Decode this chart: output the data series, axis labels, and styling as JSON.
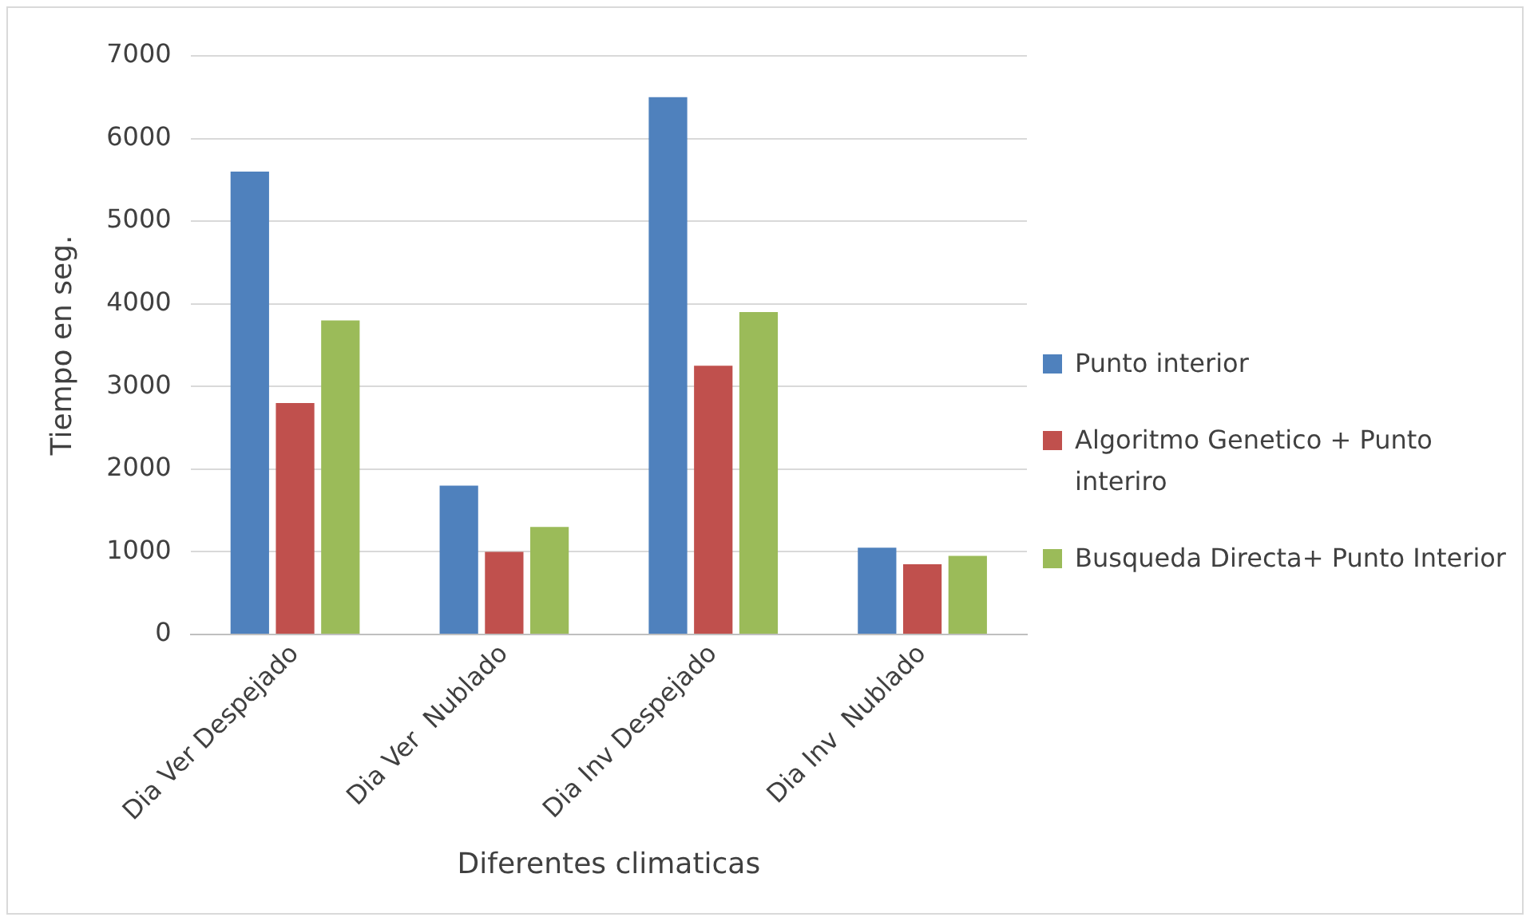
{
  "chart_data": {
    "type": "bar",
    "xlabel": "Diferentes climaticas",
    "ylabel": "Tiempo en seg.",
    "categories": [
      "Dia Ver Despejado",
      "Dia Ver  Nublado",
      "Dia Inv Despejado",
      "Dia Inv  Nublado"
    ],
    "series": [
      {
        "name": "Punto interior",
        "color": "#4f81bd",
        "values": [
          5600,
          1800,
          6500,
          1050
        ]
      },
      {
        "name": "Algoritmo Genetico + Punto interiro",
        "color": "#c0504d",
        "values": [
          2800,
          1000,
          3250,
          850
        ]
      },
      {
        "name": "Busqueda Directa+ Punto Interior",
        "color": "#9bbb59",
        "values": [
          3800,
          1300,
          3900,
          950
        ]
      }
    ],
    "ylim": [
      0,
      7000
    ],
    "yticks": [
      0,
      1000,
      2000,
      3000,
      4000,
      5000,
      6000,
      7000
    ],
    "grid": "y",
    "legend": "right"
  }
}
